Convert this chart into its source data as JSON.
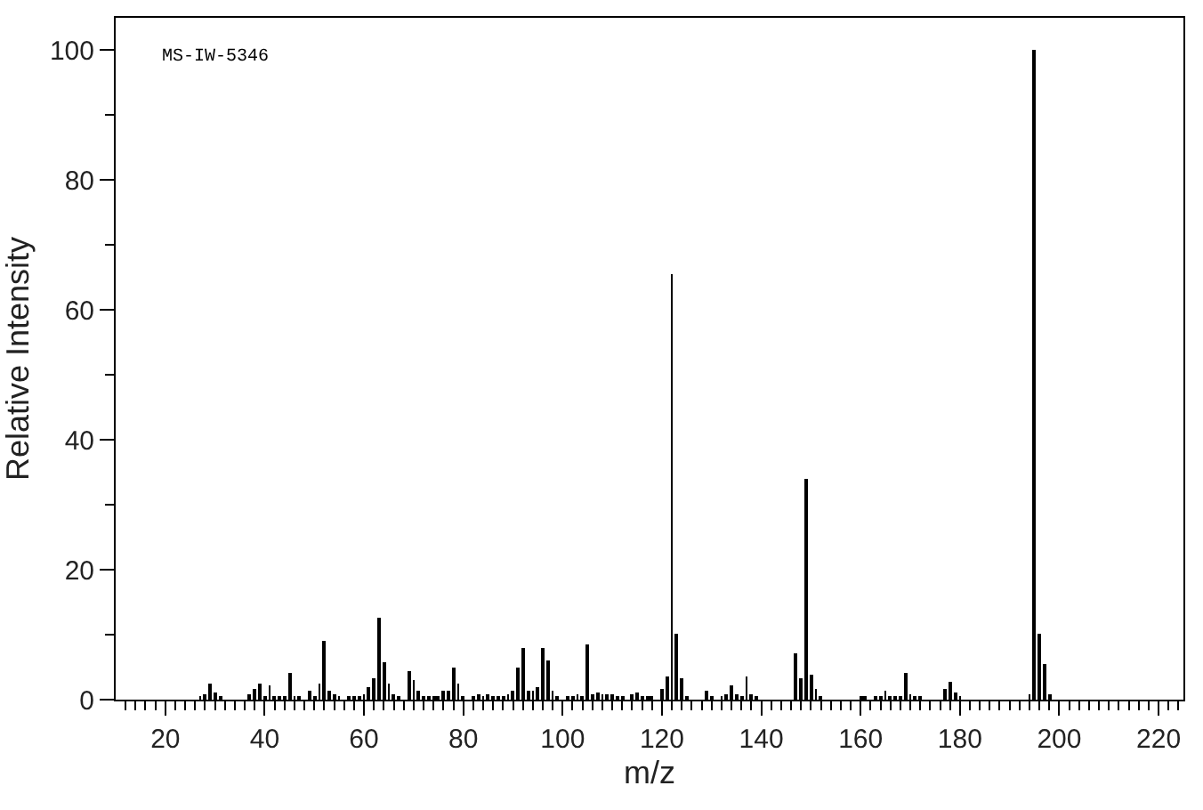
{
  "chart_data": {
    "type": "bar",
    "xlabel": "m/z",
    "ylabel": "Relative Intensity",
    "annotations": [
      "MS-IW-5346"
    ],
    "x": [
      27,
      28,
      29,
      30,
      31,
      37,
      38,
      39,
      40,
      41,
      42,
      43,
      44,
      45,
      46,
      47,
      49,
      50,
      51,
      52,
      53,
      54,
      55,
      57,
      58,
      59,
      60,
      61,
      62,
      63,
      64,
      65,
      66,
      67,
      69,
      70,
      71,
      72,
      73,
      74,
      75,
      76,
      77,
      78,
      79,
      80,
      82,
      83,
      84,
      85,
      86,
      87,
      88,
      89,
      90,
      91,
      92,
      93,
      94,
      95,
      96,
      97,
      98,
      99,
      101,
      102,
      103,
      104,
      105,
      106,
      107,
      108,
      109,
      110,
      111,
      112,
      114,
      115,
      116,
      117,
      118,
      120,
      121,
      122,
      123,
      124,
      125,
      129,
      130,
      132,
      133,
      134,
      135,
      136,
      137,
      138,
      139,
      147,
      148,
      149,
      150,
      151,
      152,
      160,
      161,
      163,
      164,
      165,
      166,
      167,
      168,
      169,
      170,
      171,
      172,
      177,
      178,
      179,
      180,
      194,
      195,
      196,
      197,
      198
    ],
    "values": [
      0.5,
      0.7,
      2.5,
      1.1,
      0.4,
      0.7,
      1.6,
      2.5,
      0.5,
      2.3,
      0.5,
      0.5,
      0.6,
      4.2,
      0.5,
      0.5,
      1.4,
      0.6,
      2.5,
      9.1,
      1.4,
      0.9,
      0.4,
      0.3,
      0.5,
      0.5,
      0.9,
      2,
      3.2,
      12.7,
      5.7,
      2.5,
      0.7,
      0.5,
      4.4,
      3,
      1.4,
      0.6,
      0.6,
      0.6,
      0.6,
      1.4,
      1.4,
      5,
      2.5,
      0.5,
      0.5,
      0.7,
      0.5,
      0.7,
      0.5,
      0.5,
      0.5,
      0.9,
      1.4,
      5,
      8,
      1.4,
      1.4,
      1.8,
      8,
      6,
      1.5,
      0.5,
      0.5,
      0.4,
      0.7,
      0.4,
      8.4,
      0.9,
      1.1,
      0.7,
      0.7,
      0.9,
      0.5,
      0.5,
      0.7,
      1.1,
      0.5,
      0.5,
      0.5,
      1.6,
      3.6,
      65.5,
      10.2,
      3.4,
      0.5,
      1.4,
      0.4,
      0.5,
      0.7,
      2.3,
      0.9,
      0.5,
      3.6,
      0.9,
      0.5,
      7.1,
      3.2,
      34,
      3.8,
      1.6,
      0.5,
      0.4,
      0.4,
      0.4,
      0.5,
      1.5,
      0.5,
      0.5,
      0.5,
      4.1,
      0.7,
      0.5,
      0.5,
      1.6,
      2.7,
      1.1,
      0.4,
      0.7,
      100,
      10.2,
      5.5,
      0.7
    ],
    "color": "#000000",
    "xlim": [
      10,
      225
    ],
    "ylim": [
      0,
      105
    ],
    "xticks": [
      {
        "value": 12,
        "label": null
      },
      {
        "value": 14,
        "label": null
      },
      {
        "value": 16,
        "label": null
      },
      {
        "value": 18,
        "label": null
      },
      20,
      {
        "value": 22,
        "label": null
      },
      {
        "value": 24,
        "label": null
      },
      {
        "value": 26,
        "label": null
      },
      {
        "value": 28,
        "label": null
      },
      {
        "value": 30,
        "label": null
      },
      {
        "value": 32,
        "label": null
      },
      {
        "value": 34,
        "label": null
      },
      {
        "value": 36,
        "label": null
      },
      {
        "value": 38,
        "label": null
      },
      40,
      {
        "value": 42,
        "label": null
      },
      {
        "value": 44,
        "label": null
      },
      {
        "value": 46,
        "label": null
      },
      {
        "value": 48,
        "label": null
      },
      {
        "value": 50,
        "label": null
      },
      {
        "value": 52,
        "label": null
      },
      {
        "value": 54,
        "label": null
      },
      {
        "value": 56,
        "label": null
      },
      {
        "value": 58,
        "label": null
      },
      60,
      {
        "value": 62,
        "label": null
      },
      {
        "value": 64,
        "label": null
      },
      {
        "value": 66,
        "label": null
      },
      {
        "value": 68,
        "label": null
      },
      {
        "value": 70,
        "label": null
      },
      {
        "value": 72,
        "label": null
      },
      {
        "value": 74,
        "label": null
      },
      {
        "value": 76,
        "label": null
      },
      {
        "value": 78,
        "label": null
      },
      80,
      {
        "value": 82,
        "label": null
      },
      {
        "value": 84,
        "label": null
      },
      {
        "value": 86,
        "label": null
      },
      {
        "value": 88,
        "label": null
      },
      {
        "value": 90,
        "label": null
      },
      {
        "value": 92,
        "label": null
      },
      {
        "value": 94,
        "label": null
      },
      {
        "value": 96,
        "label": null
      },
      {
        "value": 98,
        "label": null
      },
      100,
      {
        "value": 102,
        "label": null
      },
      {
        "value": 104,
        "label": null
      },
      {
        "value": 106,
        "label": null
      },
      {
        "value": 108,
        "label": null
      },
      {
        "value": 110,
        "label": null
      },
      {
        "value": 112,
        "label": null
      },
      {
        "value": 114,
        "label": null
      },
      {
        "value": 116,
        "label": null
      },
      {
        "value": 118,
        "label": null
      },
      120,
      {
        "value": 122,
        "label": null
      },
      {
        "value": 124,
        "label": null
      },
      {
        "value": 126,
        "label": null
      },
      {
        "value": 128,
        "label": null
      },
      {
        "value": 130,
        "label": null
      },
      {
        "value": 132,
        "label": null
      },
      {
        "value": 134,
        "label": null
      },
      {
        "value": 136,
        "label": null
      },
      {
        "value": 138,
        "label": null
      },
      140,
      {
        "value": 142,
        "label": null
      },
      {
        "value": 144,
        "label": null
      },
      {
        "value": 146,
        "label": null
      },
      {
        "value": 148,
        "label": null
      },
      {
        "value": 150,
        "label": null
      },
      {
        "value": 152,
        "label": null
      },
      {
        "value": 154,
        "label": null
      },
      {
        "value": 156,
        "label": null
      },
      {
        "value": 158,
        "label": null
      },
      160,
      {
        "value": 162,
        "label": null
      },
      {
        "value": 164,
        "label": null
      },
      {
        "value": 166,
        "label": null
      },
      {
        "value": 168,
        "label": null
      },
      {
        "value": 170,
        "label": null
      },
      {
        "value": 172,
        "label": null
      },
      {
        "value": 174,
        "label": null
      },
      {
        "value": 176,
        "label": null
      },
      {
        "value": 178,
        "label": null
      },
      180,
      {
        "value": 182,
        "label": null
      },
      {
        "value": 184,
        "label": null
      },
      {
        "value": 186,
        "label": null
      },
      {
        "value": 188,
        "label": null
      },
      {
        "value": 190,
        "label": null
      },
      {
        "value": 192,
        "label": null
      },
      {
        "value": 194,
        "label": null
      },
      {
        "value": 196,
        "label": null
      },
      {
        "value": 198,
        "label": null
      },
      200,
      {
        "value": 202,
        "label": null
      },
      {
        "value": 204,
        "label": null
      },
      {
        "value": 206,
        "label": null
      },
      {
        "value": 208,
        "label": null
      },
      {
        "value": 210,
        "label": null
      },
      {
        "value": 212,
        "label": null
      },
      {
        "value": 214,
        "label": null
      },
      {
        "value": 216,
        "label": null
      },
      {
        "value": 218,
        "label": null
      },
      220,
      {
        "value": 222,
        "label": null
      },
      {
        "value": 224,
        "label": null
      }
    ],
    "yticks": [
      0,
      {
        "value": 10,
        "label": null
      },
      20,
      {
        "value": 30,
        "label": null
      },
      40,
      {
        "value": 50,
        "label": null
      },
      60,
      {
        "value": 70,
        "label": null
      },
      80,
      {
        "value": 90,
        "label": null
      },
      100
    ],
    "marker": "none"
  }
}
